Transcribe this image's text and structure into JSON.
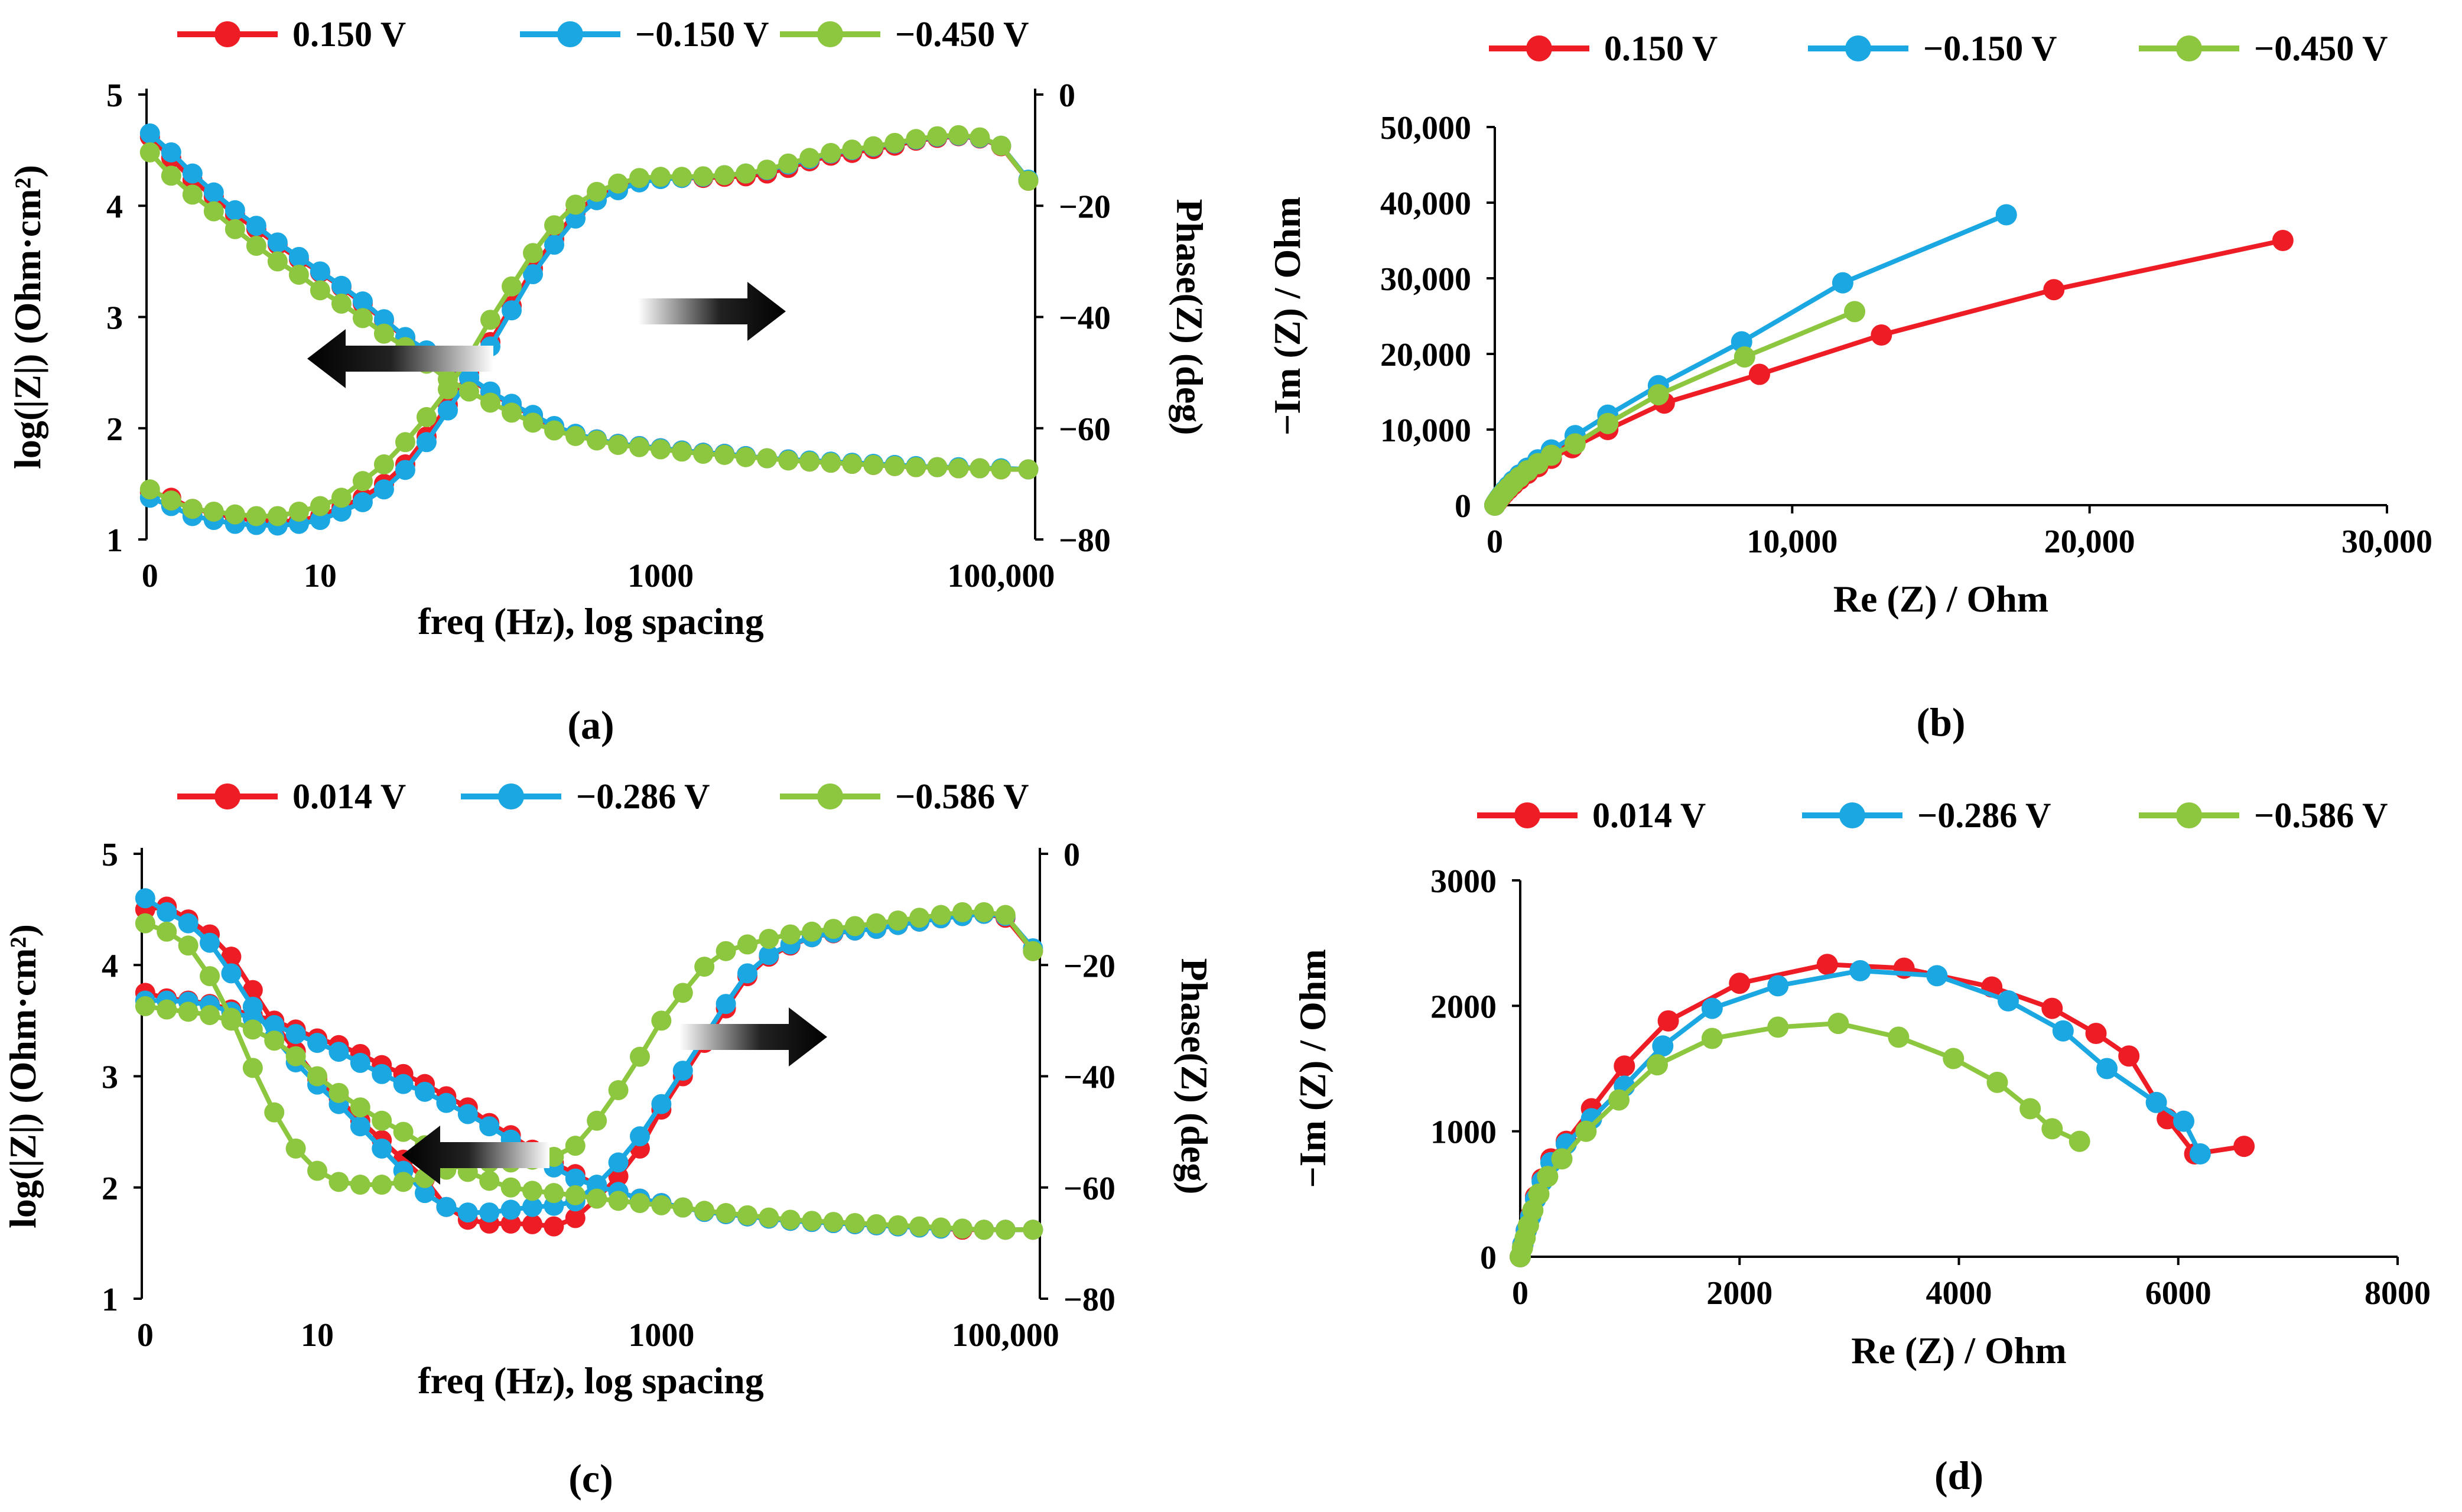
{
  "figure": {
    "panels": [
      "(a)",
      "(b)",
      "(c)",
      "(d)"
    ]
  },
  "colors": {
    "red": "#ee1c24",
    "blue": "#1ba7e1",
    "green": "#8dc63f"
  },
  "chart_data": [
    {
      "id": "a",
      "type": "line",
      "panel_label": "(a)",
      "xlabel": "freq (Hz), log spacing",
      "ylabel": "log(|Z|) (Ohm·cm²)",
      "y2label": "Phase(Z) (deg)",
      "xticks": [
        {
          "pos": 0,
          "label": "0"
        },
        {
          "pos": 1,
          "label": "10"
        },
        {
          "pos": 3,
          "label": "1000"
        },
        {
          "pos": 5,
          "label": "100,000"
        }
      ],
      "xlim": [
        -0.02,
        5.2
      ],
      "ylim": [
        1,
        5
      ],
      "yticks": [
        "1",
        "2",
        "3",
        "4",
        "5"
      ],
      "y2lim": [
        -80,
        0
      ],
      "y2ticks": [
        "0",
        "−20",
        "−40",
        "−60",
        "−80"
      ],
      "legend": [
        "0.150 V",
        "−0.150 V",
        "−0.450 V"
      ],
      "x": [
        0.0,
        0.125,
        0.25,
        0.375,
        0.5,
        0.625,
        0.75,
        0.875,
        1.0,
        1.125,
        1.25,
        1.375,
        1.5,
        1.625,
        1.75,
        1.875,
        2.0,
        2.125,
        2.25,
        2.375,
        2.5,
        2.625,
        2.75,
        2.875,
        3.0,
        3.125,
        3.25,
        3.375,
        3.5,
        3.625,
        3.75,
        3.875,
        4.0,
        4.125,
        4.25,
        4.375,
        4.5,
        4.625,
        4.75,
        4.875,
        5.0,
        5.16
      ],
      "series": [
        {
          "name": "0.150 V",
          "color": "red",
          "mod": [
            4.62,
            4.43,
            4.23,
            4.08,
            3.92,
            3.79,
            3.65,
            3.52,
            3.4,
            3.27,
            3.12,
            2.97,
            2.81,
            2.69,
            2.56,
            2.45,
            2.32,
            2.21,
            2.11,
            2.01,
            1.94,
            1.9,
            1.86,
            1.84,
            1.82,
            1.8,
            1.78,
            1.77,
            1.75,
            1.73,
            1.72,
            1.7,
            1.69,
            1.68,
            1.67,
            1.66,
            1.65,
            1.65,
            1.64,
            1.64,
            1.63,
            1.63
          ],
          "phase": [
            -71.5,
            -72.5,
            -74.5,
            -75.2,
            -76.2,
            -76.5,
            -76.8,
            -76.6,
            -75.8,
            -74.2,
            -72.5,
            -70.0,
            -66.5,
            -61.5,
            -55.8,
            -50.0,
            -44.5,
            -38.0,
            -31.3,
            -26.0,
            -21.2,
            -18.3,
            -16.8,
            -15.4,
            -15.0,
            -15.0,
            -15.0,
            -14.8,
            -14.7,
            -14.2,
            -13.2,
            -12.0,
            -11.0,
            -10.5,
            -9.8,
            -9.2,
            -8.3,
            -7.8,
            -7.5,
            -7.9,
            -9.3,
            -15.5
          ]
        },
        {
          "name": "−0.150 V",
          "color": "blue",
          "mod": [
            4.65,
            4.48,
            4.29,
            4.12,
            3.96,
            3.82,
            3.67,
            3.54,
            3.41,
            3.28,
            3.14,
            2.98,
            2.82,
            2.7,
            2.57,
            2.46,
            2.33,
            2.22,
            2.12,
            2.02,
            1.95,
            1.9,
            1.86,
            1.84,
            1.82,
            1.8,
            1.78,
            1.77,
            1.75,
            1.73,
            1.72,
            1.71,
            1.7,
            1.69,
            1.68,
            1.67,
            1.66,
            1.65,
            1.65,
            1.64,
            1.64,
            1.63
          ],
          "phase": [
            -72.5,
            -74.0,
            -75.8,
            -76.5,
            -77.2,
            -77.4,
            -77.5,
            -77.2,
            -76.5,
            -75.0,
            -73.3,
            -71.0,
            -67.5,
            -62.5,
            -56.8,
            -51.0,
            -45.3,
            -38.8,
            -32.3,
            -27.0,
            -22.3,
            -19.0,
            -17.2,
            -15.8,
            -15.2,
            -15.0,
            -14.8,
            -14.5,
            -14.2,
            -13.6,
            -12.6,
            -11.6,
            -10.6,
            -10.0,
            -9.4,
            -8.8,
            -8.1,
            -7.6,
            -7.4,
            -7.8,
            -9.2,
            -15.3
          ]
        },
        {
          "name": "−0.450 V",
          "color": "green",
          "mod": [
            4.48,
            4.27,
            4.1,
            3.95,
            3.79,
            3.64,
            3.5,
            3.38,
            3.24,
            3.12,
            2.99,
            2.85,
            2.73,
            2.58,
            2.44,
            2.33,
            2.23,
            2.14,
            2.05,
            1.98,
            1.93,
            1.89,
            1.85,
            1.83,
            1.81,
            1.79,
            1.77,
            1.76,
            1.74,
            1.73,
            1.71,
            1.7,
            1.69,
            1.68,
            1.67,
            1.66,
            1.65,
            1.65,
            1.64,
            1.64,
            1.63,
            1.63
          ],
          "phase": [
            -71.0,
            -73.0,
            -74.5,
            -75.0,
            -75.5,
            -75.8,
            -75.8,
            -75.0,
            -74.0,
            -72.5,
            -69.5,
            -66.5,
            -62.5,
            -58.0,
            -53.0,
            -47.0,
            -40.5,
            -34.5,
            -28.5,
            -23.5,
            -19.8,
            -17.5,
            -16.0,
            -15.0,
            -14.8,
            -14.8,
            -14.7,
            -14.5,
            -14.2,
            -13.5,
            -12.4,
            -11.4,
            -10.5,
            -9.9,
            -9.3,
            -8.7,
            -8.0,
            -7.5,
            -7.3,
            -7.7,
            -9.2,
            -15.5
          ]
        }
      ],
      "annotations": [
        {
          "text": "",
          "description": "arrow pointing left to log|Z| axis"
        },
        {
          "text": "",
          "description": "arrow pointing right to phase axis"
        }
      ]
    },
    {
      "id": "b",
      "type": "scatter",
      "panel_label": "(b)",
      "xlabel": "Re (Z) / Ohm",
      "ylabel": "−Im (Z) / Ohm",
      "xlim": [
        0,
        30000
      ],
      "ylim": [
        0,
        50000
      ],
      "xticks": [
        "0",
        "10,000",
        "20,000",
        "30,000"
      ],
      "yticks": [
        "0",
        "10,000",
        "20,000",
        "30,000",
        "40,000",
        "50,000"
      ],
      "legend": [
        "0.150 V",
        "−0.150 V",
        "−0.450 V"
      ],
      "series": [
        {
          "name": "0.150 V",
          "color": "red",
          "x": [
            0,
            40,
            90,
            150,
            230,
            330,
            460,
            620,
            830,
            1100,
            1450,
            1900,
            2600,
            3800,
            5700,
            8900,
            13000,
            18800,
            26500
          ],
          "y": [
            0,
            250,
            500,
            800,
            1150,
            1600,
            2100,
            2700,
            3400,
            4200,
            5100,
            6200,
            7600,
            10000,
            13500,
            17300,
            22500,
            28500,
            35000
          ]
        },
        {
          "name": "−0.150 V",
          "color": "blue",
          "x": [
            0,
            40,
            90,
            150,
            230,
            330,
            460,
            620,
            830,
            1100,
            1450,
            1900,
            2700,
            3800,
            5500,
            8300,
            11700,
            17200
          ],
          "y": [
            0,
            300,
            600,
            950,
            1400,
            1900,
            2500,
            3200,
            4000,
            4900,
            6000,
            7300,
            9200,
            11900,
            15800,
            21600,
            29400,
            38400
          ]
        },
        {
          "name": "−0.450 V",
          "color": "green",
          "x": [
            0,
            40,
            90,
            150,
            230,
            330,
            460,
            620,
            830,
            1100,
            1450,
            1900,
            2700,
            3800,
            5500,
            8400,
            12100
          ],
          "y": [
            0,
            280,
            560,
            880,
            1300,
            1760,
            2300,
            2950,
            3700,
            4550,
            5500,
            6600,
            8100,
            10800,
            14600,
            19600,
            25600
          ]
        }
      ]
    },
    {
      "id": "c",
      "type": "line",
      "panel_label": "(c)",
      "xlabel": "freq (Hz), log spacing",
      "ylabel": "log(|Z|) (Ohm·cm²)",
      "y2label": "Phase(Z) (deg)",
      "xticks": [
        {
          "pos": 0,
          "label": "0"
        },
        {
          "pos": 1,
          "label": "10"
        },
        {
          "pos": 3,
          "label": "1000"
        },
        {
          "pos": 5,
          "label": "100,000"
        }
      ],
      "xlim": [
        -0.02,
        5.2
      ],
      "ylim": [
        1,
        5
      ],
      "yticks": [
        "1",
        "2",
        "3",
        "4",
        "5"
      ],
      "y2lim": [
        -80,
        0
      ],
      "y2ticks": [
        "0",
        "−20",
        "−40",
        "−60",
        "−80"
      ],
      "legend": [
        "0.014 V",
        "−0.286 V",
        "−0.586 V"
      ],
      "x": [
        0.0,
        0.125,
        0.25,
        0.375,
        0.5,
        0.625,
        0.75,
        0.875,
        1.0,
        1.125,
        1.25,
        1.375,
        1.5,
        1.625,
        1.75,
        1.875,
        2.0,
        2.125,
        2.25,
        2.375,
        2.5,
        2.625,
        2.75,
        2.875,
        3.0,
        3.125,
        3.25,
        3.375,
        3.5,
        3.625,
        3.75,
        3.875,
        4.0,
        4.125,
        4.25,
        4.375,
        4.5,
        4.625,
        4.75,
        4.875,
        5.0,
        5.16
      ],
      "series": [
        {
          "name": "0.014 V",
          "color": "red",
          "mod": [
            3.75,
            3.7,
            3.68,
            3.65,
            3.6,
            3.55,
            3.5,
            3.42,
            3.34,
            3.28,
            3.2,
            3.1,
            3.02,
            2.93,
            2.82,
            2.72,
            2.58,
            2.47,
            2.34,
            2.22,
            2.12,
            2.02,
            1.96,
            1.9,
            1.86,
            1.82,
            1.78,
            1.76,
            1.74,
            1.72,
            1.7,
            1.69,
            1.68,
            1.67,
            1.66,
            1.65,
            1.64,
            1.63,
            1.62,
            1.62,
            1.62,
            1.62
          ],
          "phase": [
            -10.0,
            -9.5,
            -11.8,
            -14.5,
            -18.5,
            -24.5,
            -30.5,
            -35.5,
            -40.5,
            -44.0,
            -48.0,
            -51.5,
            -55.0,
            -58.5,
            -63.5,
            -65.8,
            -66.5,
            -66.5,
            -66.6,
            -67.0,
            -65.5,
            -62.0,
            -58.0,
            -53.0,
            -46.0,
            -40.0,
            -34.0,
            -27.8,
            -22.0,
            -18.5,
            -16.5,
            -15.0,
            -14.3,
            -13.8,
            -13.5,
            -12.8,
            -12.2,
            -11.6,
            -11.2,
            -10.8,
            -11.5,
            -17.5
          ]
        },
        {
          "name": "−0.286 V",
          "color": "blue",
          "mod": [
            3.68,
            3.68,
            3.67,
            3.64,
            3.58,
            3.52,
            3.46,
            3.38,
            3.3,
            3.22,
            3.12,
            3.02,
            2.93,
            2.86,
            2.76,
            2.66,
            2.55,
            2.43,
            2.3,
            2.18,
            2.08,
            2.01,
            1.96,
            1.9,
            1.86,
            1.82,
            1.78,
            1.76,
            1.74,
            1.72,
            1.7,
            1.69,
            1.68,
            1.67,
            1.66,
            1.65,
            1.64,
            1.63,
            1.63,
            1.62,
            1.62,
            1.62
          ],
          "phase": [
            -8.0,
            -10.5,
            -12.5,
            -16.0,
            -21.5,
            -27.5,
            -33.0,
            -37.5,
            -41.5,
            -45.0,
            -49.0,
            -53.0,
            -57.0,
            -61.0,
            -63.5,
            -64.5,
            -64.5,
            -64.0,
            -63.5,
            -63.3,
            -62.5,
            -59.5,
            -55.5,
            -50.8,
            -45.0,
            -39.0,
            -33.0,
            -27.0,
            -21.5,
            -18.2,
            -16.3,
            -15.0,
            -14.2,
            -13.8,
            -13.5,
            -12.8,
            -12.2,
            -11.6,
            -11.2,
            -10.8,
            -11.2,
            -17.0
          ]
        },
        {
          "name": "−0.586 V",
          "color": "green",
          "mod": [
            3.63,
            3.6,
            3.58,
            3.55,
            3.5,
            3.42,
            3.32,
            3.18,
            3.0,
            2.85,
            2.72,
            2.6,
            2.5,
            2.38,
            2.24,
            2.14,
            2.06,
            2.0,
            1.97,
            1.95,
            1.93,
            1.9,
            1.88,
            1.86,
            1.84,
            1.82,
            1.79,
            1.77,
            1.75,
            1.73,
            1.71,
            1.7,
            1.69,
            1.68,
            1.67,
            1.66,
            1.65,
            1.64,
            1.63,
            1.62,
            1.62,
            1.62
          ],
          "phase": [
            -12.5,
            -14.0,
            -16.5,
            -22.0,
            -29.5,
            -38.5,
            -46.5,
            -53.0,
            -57.0,
            -59.0,
            -59.5,
            -59.5,
            -59.0,
            -58.3,
            -56.8,
            -55.8,
            -55.5,
            -55.5,
            -55.0,
            -54.5,
            -52.5,
            -48.0,
            -42.5,
            -36.5,
            -30.0,
            -25.0,
            -20.3,
            -17.5,
            -16.3,
            -15.3,
            -14.5,
            -14.0,
            -13.5,
            -13.0,
            -12.5,
            -12.0,
            -11.5,
            -11.0,
            -10.5,
            -10.5,
            -11.0,
            -17.5
          ]
        }
      ],
      "annotations": [
        {
          "text": "",
          "description": "arrow pointing left to log|Z| axis"
        },
        {
          "text": "",
          "description": "arrow pointing right to phase axis"
        }
      ]
    },
    {
      "id": "d",
      "type": "scatter",
      "panel_label": "(d)",
      "xlabel": "Re (Z) / Ohm",
      "ylabel": "−Im (Z) / Ohm",
      "xlim": [
        0,
        8000
      ],
      "ylim": [
        0,
        3000
      ],
      "xticks": [
        "0",
        "2000",
        "4000",
        "6000",
        "8000"
      ],
      "yticks": [
        "0",
        "1000",
        "2000",
        "3000"
      ],
      "legend": [
        "0.014 V",
        "−0.286 V",
        "−0.586 V"
      ],
      "series": [
        {
          "name": "0.014 V",
          "color": "red",
          "x": [
            0,
            25,
            55,
            95,
            140,
            200,
            280,
            420,
            650,
            950,
            1350,
            2000,
            2800,
            3500,
            4300,
            4850,
            5250,
            5550,
            5900,
            6150,
            6600
          ],
          "y": [
            0,
            100,
            210,
            330,
            480,
            620,
            780,
            920,
            1180,
            1520,
            1880,
            2180,
            2330,
            2300,
            2150,
            1980,
            1780,
            1600,
            1100,
            820,
            880
          ]
        },
        {
          "name": "−0.286 V",
          "color": "blue",
          "x": [
            0,
            25,
            55,
            95,
            140,
            200,
            280,
            420,
            650,
            950,
            1300,
            1750,
            2350,
            3100,
            3800,
            4450,
            4950,
            5350,
            5800,
            6050,
            6200
          ],
          "y": [
            0,
            100,
            210,
            320,
            460,
            600,
            750,
            900,
            1100,
            1360,
            1680,
            1980,
            2160,
            2280,
            2240,
            2040,
            1800,
            1500,
            1230,
            1080,
            820
          ]
        },
        {
          "name": "−0.586 V",
          "color": "green",
          "x": [
            0,
            20,
            45,
            75,
            115,
            170,
            250,
            380,
            600,
            900,
            1250,
            1750,
            2350,
            2900,
            3450,
            3950,
            4350,
            4650,
            4850,
            5100
          ],
          "y": [
            0,
            70,
            150,
            250,
            370,
            500,
            640,
            780,
            1000,
            1250,
            1530,
            1740,
            1830,
            1860,
            1750,
            1580,
            1390,
            1180,
            1020,
            920
          ]
        }
      ]
    }
  ]
}
